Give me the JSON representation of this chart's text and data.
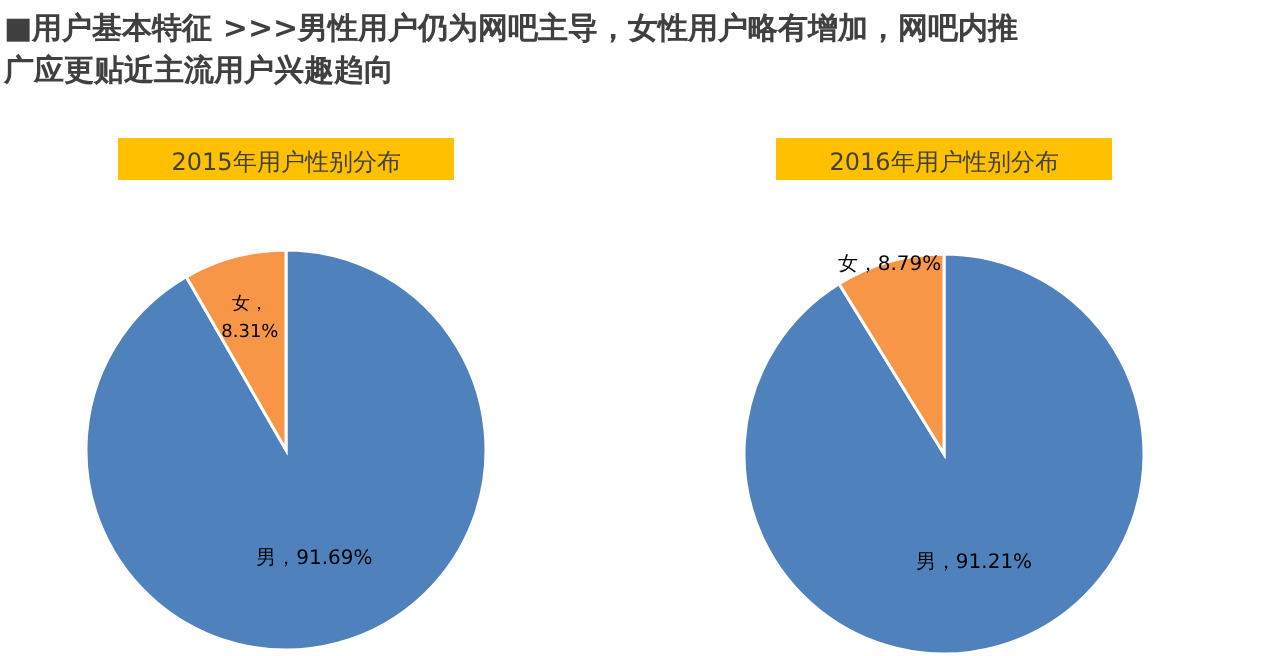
{
  "chart_data": [
    {
      "type": "other",
      "title": "■用户基本特征    >>>男性用户仍为网吧主导，女性用户略有增加，网吧内推广应更贴近主流用户兴趣趋向"
    },
    {
      "type": "pie",
      "title": "2015年用户性别分布",
      "categories": [
        "男",
        "女"
      ],
      "values": [
        91.69,
        8.31
      ],
      "colors": [
        "#4f81bd",
        "#f79646"
      ],
      "value_labels": [
        "，91.69%",
        "，\n8.31%"
      ]
    },
    {
      "type": "pie",
      "title": "2016年用户性别分布",
      "categories": [
        "男",
        "女"
      ],
      "values": [
        91.21,
        8.79
      ],
      "colors": [
        "#4f81bd",
        "#f79646"
      ],
      "value_labels": [
        "，91.21%",
        "，8.79%"
      ]
    }
  ]
}
